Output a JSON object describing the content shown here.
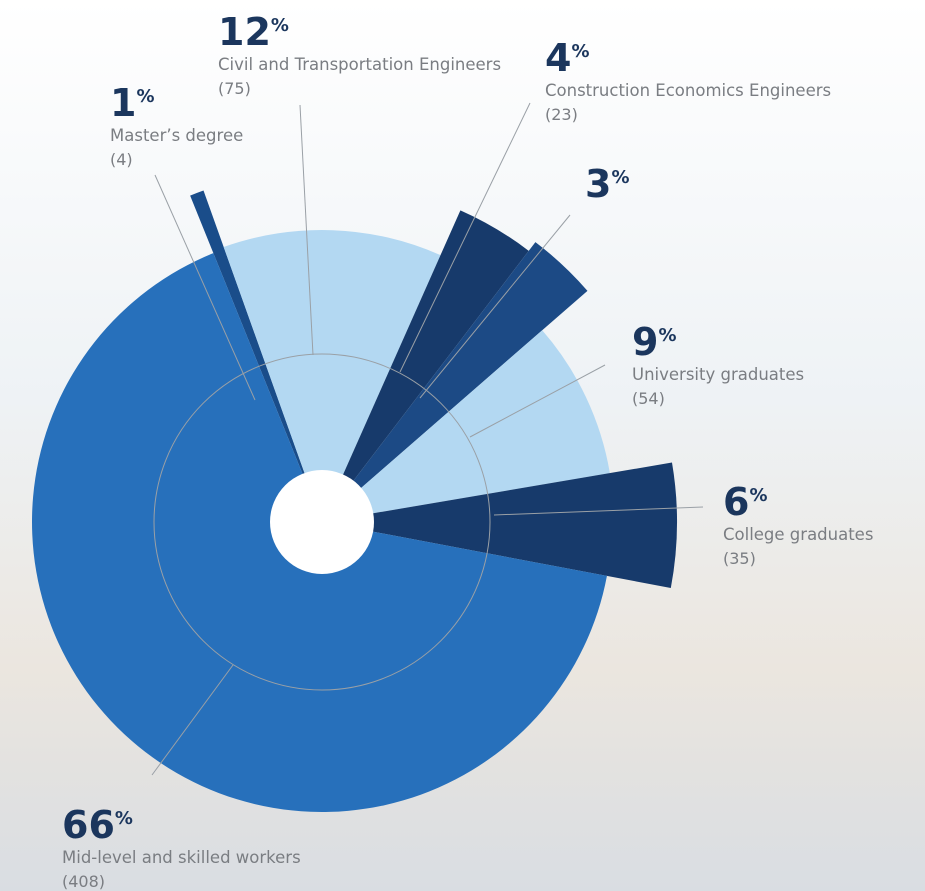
{
  "chart_data": {
    "type": "pie",
    "categories": [
      "Master’s degree",
      "Civil and Transportation Engineers",
      "Construction Economics Engineers",
      null,
      "University graduates",
      "College graduates",
      "Mid-level and skilled workers"
    ],
    "values": [
      4,
      75,
      23,
      20,
      54,
      35,
      408
    ],
    "value_labels": [
      "(4)",
      "(75)",
      "(23)",
      null,
      "(54)",
      "(35)",
      "(408)"
    ],
    "percent_labels": [
      "1%",
      "12%",
      "4%",
      "3%",
      "9%",
      "6%",
      "66%"
    ],
    "colors": [
      "#1a4d8a",
      "#b3d8f2",
      "#173a6b",
      "#1c4a85",
      "#b3d8f2",
      "#173a6b",
      "#2770bb"
    ]
  }
}
